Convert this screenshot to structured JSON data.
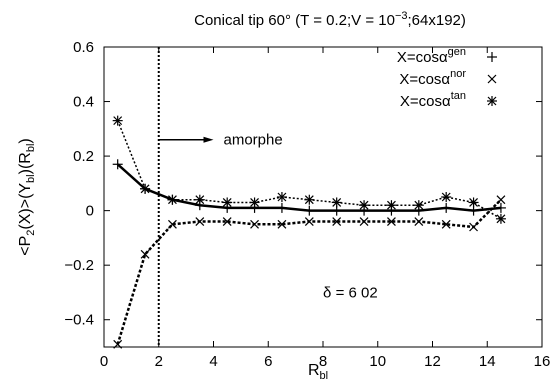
{
  "chart_data": {
    "type": "line",
    "title": "Conical tip 60° (T = 0.2;V = 10",
    "title_exp": "−3",
    "title_tail": ";64x192)",
    "xlabel": "R",
    "xlabel_sub": "bl",
    "ylabel": "<P",
    "ylabel_parts": [
      "<P",
      "2",
      "(X)>(Y",
      "bl",
      ")(R",
      "bl",
      ")"
    ],
    "xlim": [
      0,
      16
    ],
    "ylim": [
      -0.5,
      0.6
    ],
    "xticks": [
      "0",
      "2",
      "4",
      "6",
      "8",
      "10",
      "12",
      "14",
      "16"
    ],
    "yticks": [
      "0.6",
      "0.4",
      "0.2",
      "0",
      "−0.2",
      "−0.4"
    ],
    "ytick_values": [
      0.6,
      0.4,
      0.2,
      0,
      -0.2,
      -0.4
    ],
    "xtick_values": [
      0,
      2,
      4,
      6,
      8,
      10,
      12,
      14,
      16
    ],
    "grid": false,
    "legend_placement": "top-right",
    "vline_x": 2,
    "arrow_annotation": {
      "text": "amorphe",
      "from": [
        2,
        0.26
      ],
      "to": [
        4,
        0.26
      ]
    },
    "delta_annotation": {
      "text": "δ = 6 02",
      "x": 9.0,
      "y": -0.3
    },
    "series": [
      {
        "name": "gen",
        "legend_prefix": "X=cosα",
        "legend_sup": "gen",
        "marker": "plus",
        "x": [
          0.5,
          1.5,
          2.5,
          3.5,
          4.5,
          5.5,
          6.5,
          7.5,
          8.5,
          9.5,
          10.5,
          11.5,
          12.5,
          13.5,
          14.5
        ],
        "values": [
          0.17,
          0.08,
          0.04,
          0.02,
          0.01,
          0.01,
          0.01,
          0.0,
          0.0,
          0.0,
          0.0,
          0.0,
          0.01,
          0.0,
          0.01
        ]
      },
      {
        "name": "nor",
        "legend_prefix": "X=cosα",
        "legend_sup": "nor",
        "marker": "x",
        "x": [
          0.5,
          1.5,
          2.5,
          3.5,
          4.5,
          5.5,
          6.5,
          7.5,
          8.5,
          9.5,
          10.5,
          11.5,
          12.5,
          13.5,
          14.5
        ],
        "values": [
          -0.49,
          -0.16,
          -0.05,
          -0.04,
          -0.04,
          -0.05,
          -0.05,
          -0.04,
          -0.04,
          -0.04,
          -0.04,
          -0.04,
          -0.05,
          -0.06,
          0.04
        ]
      },
      {
        "name": "tan",
        "legend_prefix": "X=cosα",
        "legend_sup": "tan",
        "marker": "star",
        "x": [
          0.5,
          1.5,
          2.5,
          3.5,
          4.5,
          5.5,
          6.5,
          7.5,
          8.5,
          9.5,
          10.5,
          11.5,
          12.5,
          13.5,
          14.5
        ],
        "values": [
          0.33,
          0.08,
          0.04,
          0.04,
          0.03,
          0.03,
          0.05,
          0.04,
          0.03,
          0.02,
          0.02,
          0.02,
          0.05,
          0.03,
          -0.03
        ]
      }
    ]
  }
}
